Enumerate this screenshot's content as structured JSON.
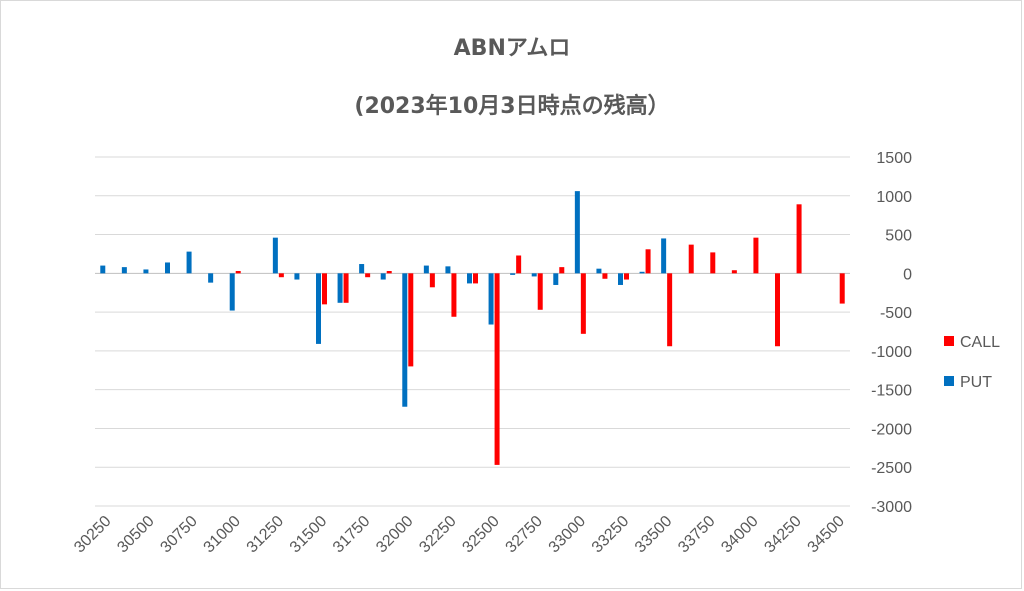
{
  "chart_data": {
    "type": "bar",
    "title": "ABNアムロ",
    "subtitle": "(2023年10月3日時点の残高）",
    "xlabel": "",
    "ylabel": "",
    "ylim": [
      -3000,
      1500
    ],
    "yticks": [
      1500,
      1000,
      500,
      0,
      -500,
      -1000,
      -1500,
      -2000,
      -2500,
      -3000
    ],
    "x_tick_labels": [
      "30250",
      "30500",
      "30750",
      "31000",
      "31250",
      "31500",
      "31750",
      "32000",
      "32250",
      "32500",
      "32750",
      "33000",
      "33250",
      "33500",
      "33750",
      "34000",
      "34250",
      "34500"
    ],
    "categories": [
      "30250",
      "30375",
      "30500",
      "30625",
      "30750",
      "30875",
      "31000",
      "31125",
      "31250",
      "31375",
      "31500",
      "31625",
      "31750",
      "31875",
      "32000",
      "32125",
      "32250",
      "32375",
      "32500",
      "32625",
      "32750",
      "32875",
      "33000",
      "33125",
      "33250",
      "33375",
      "33500",
      "33625",
      "33750",
      "33875",
      "34000",
      "34125",
      "34250",
      "34375",
      "34500"
    ],
    "series": [
      {
        "name": "CALL",
        "color": "#ff0000",
        "values": [
          0,
          0,
          0,
          0,
          0,
          0,
          30,
          0,
          -50,
          0,
          -400,
          -380,
          -50,
          30,
          -1200,
          -180,
          -560,
          -130,
          -2470,
          230,
          -470,
          80,
          -780,
          -70,
          -80,
          310,
          -940,
          370,
          270,
          40,
          460,
          -940,
          890,
          0,
          -390
        ]
      },
      {
        "name": "PUT",
        "color": "#0070c0",
        "values": [
          100,
          80,
          50,
          140,
          280,
          -120,
          -480,
          0,
          460,
          -80,
          -910,
          -380,
          120,
          -80,
          -1720,
          100,
          90,
          -130,
          -660,
          -20,
          -40,
          -150,
          1060,
          60,
          -150,
          20,
          450,
          0,
          0,
          0,
          0,
          0,
          0,
          0,
          0
        ]
      }
    ],
    "legend_position": "right",
    "grid": true
  }
}
